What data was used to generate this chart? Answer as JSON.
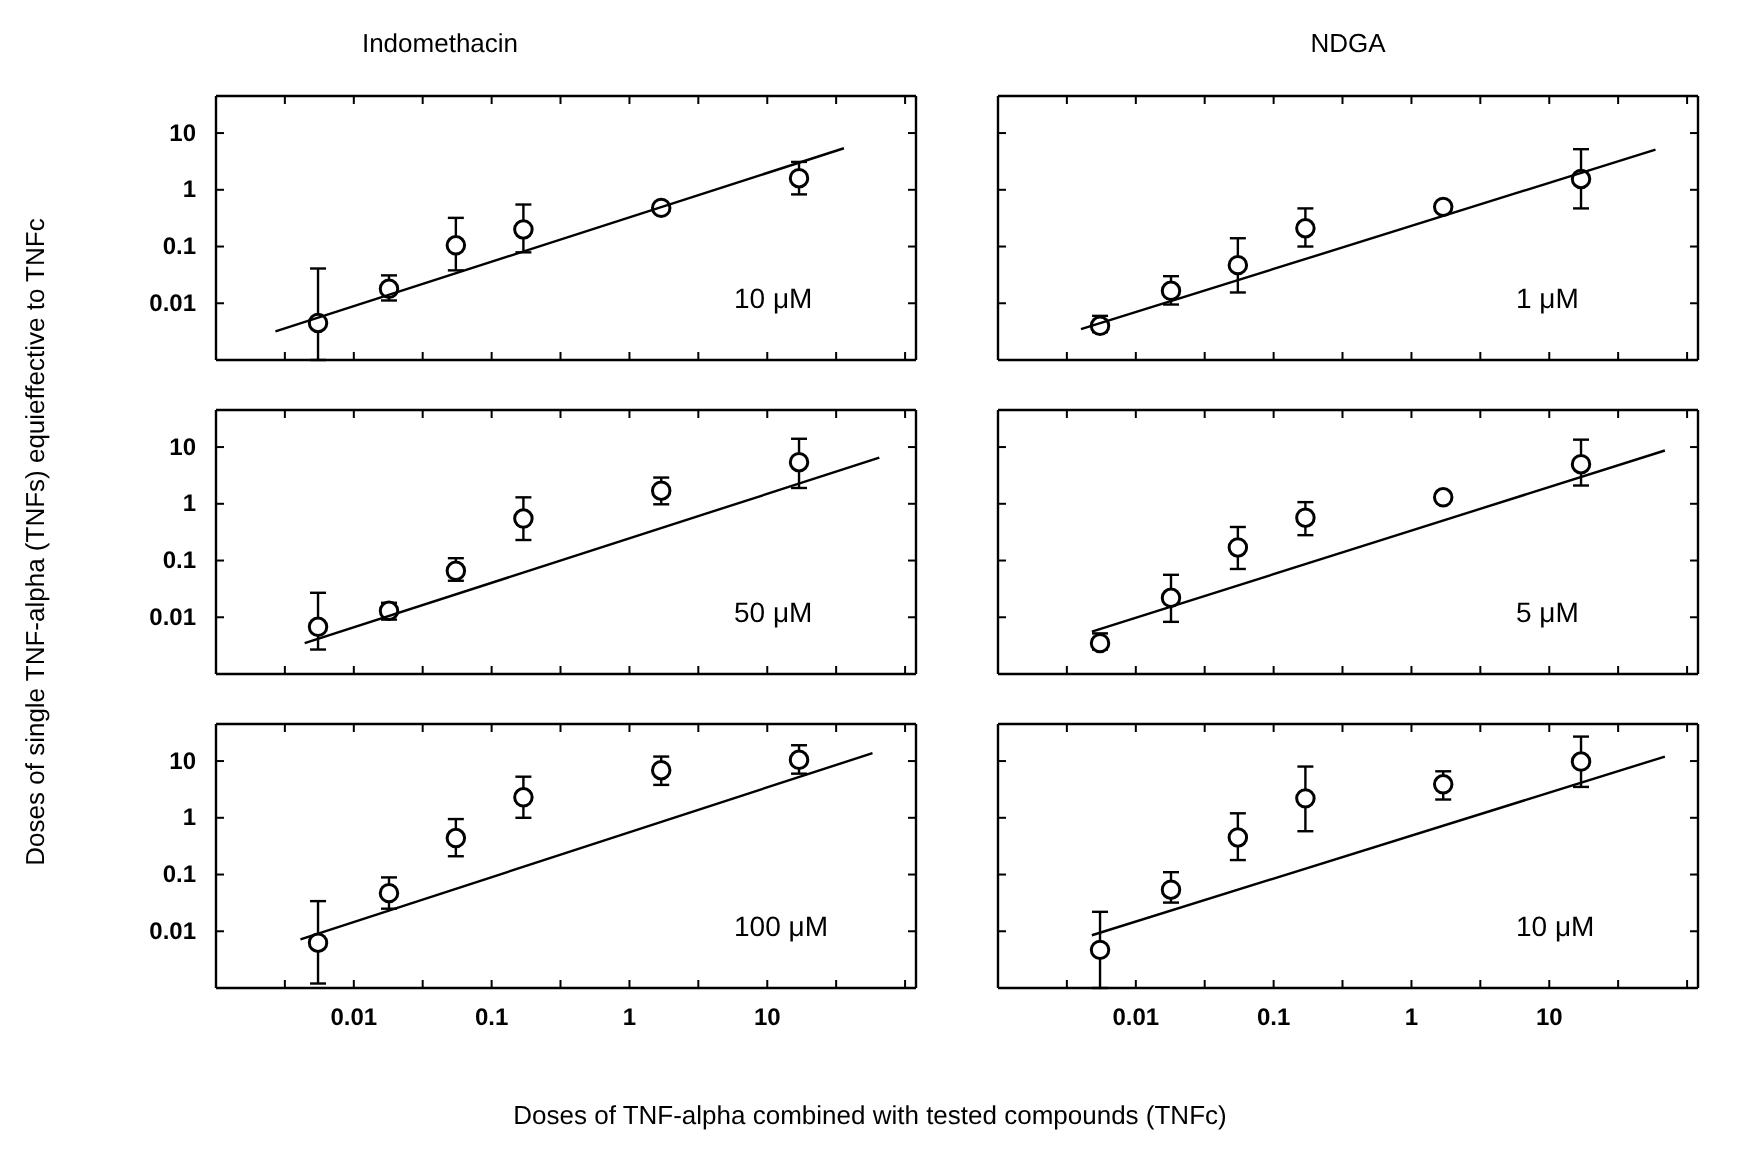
{
  "chart_data": [
    {
      "type": "scatter",
      "title": "Indomethacin",
      "log": "xy",
      "tick_labels": "y",
      "xlim": [
        0.001,
        120
      ],
      "ylim": [
        0.001,
        45
      ],
      "xticks": [
        {
          "value": 0.00316,
          "label": null
        },
        0.01,
        {
          "value": 0.0316,
          "label": null
        },
        0.1,
        {
          "value": 0.316,
          "label": null
        },
        1,
        {
          "value": 3.16,
          "label": null
        },
        10,
        {
          "value": 31.6,
          "label": null
        },
        {
          "value": 100,
          "label": null
        }
      ],
      "yticks": [
        0.01,
        0.1,
        1,
        10
      ],
      "annotations": [
        "10 μM"
      ],
      "series": [
        {
          "marker": "circle",
          "color": "#000000",
          "x": [
            0.0055,
            0.018,
            0.055,
            0.17,
            1.7,
            17
          ],
          "values": [
            0.0045,
            0.018,
            0.105,
            0.2,
            0.48,
            1.6
          ],
          "errors": [
            [
              0.001,
              0.041
            ],
            [
              0.0112,
              0.031
            ],
            [
              0.038,
              0.32
            ],
            [
              0.079,
              0.55
            ],
            [
              0.4,
              0.57
            ],
            [
              0.83,
              3.1
            ]
          ]
        },
        {
          "type": "line",
          "marker": "none",
          "color": "#000000",
          "x": [
            0.0027,
            36
          ],
          "values": [
            0.0032,
            5.4
          ]
        }
      ]
    },
    {
      "type": "scatter",
      "title": "NDGA",
      "log": "xy",
      "tick_labels": false,
      "xlim": [
        0.001,
        120
      ],
      "ylim": [
        0.001,
        45
      ],
      "xticks": [
        {
          "value": 0.00316,
          "label": null
        },
        0.01,
        {
          "value": 0.0316,
          "label": null
        },
        0.1,
        {
          "value": 0.316,
          "label": null
        },
        1,
        {
          "value": 3.16,
          "label": null
        },
        10,
        {
          "value": 31.6,
          "label": null
        },
        {
          "value": 100,
          "label": null
        }
      ],
      "yticks": [
        0.01,
        0.1,
        1,
        10
      ],
      "annotations": [
        "1 μM"
      ],
      "series": [
        {
          "marker": "circle",
          "color": "#000000",
          "x": [
            0.0055,
            0.018,
            0.055,
            0.17,
            1.7,
            17
          ],
          "values": [
            0.004,
            0.0166,
            0.047,
            0.21,
            0.5,
            1.55
          ],
          "errors": [
            [
              0.0031,
              0.006
            ],
            [
              0.0095,
              0.03
            ],
            [
              0.0155,
              0.14
            ],
            [
              0.1,
              0.47
            ],
            [
              0.42,
              0.6
            ],
            [
              0.47,
              5.2
            ]
          ]
        },
        {
          "type": "line",
          "marker": "none",
          "color": "#000000",
          "x": [
            0.004,
            59
          ],
          "values": [
            0.0035,
            5.1
          ]
        }
      ]
    },
    {
      "type": "scatter",
      "ylabel": "Doses of single TNF-alpha (TNFs) equieffective to TNFc",
      "log": "xy",
      "tick_labels": "y",
      "xlim": [
        0.001,
        120
      ],
      "ylim": [
        0.001,
        45
      ],
      "xticks": [
        {
          "value": 0.00316,
          "label": null
        },
        0.01,
        {
          "value": 0.0316,
          "label": null
        },
        0.1,
        {
          "value": 0.316,
          "label": null
        },
        1,
        {
          "value": 3.16,
          "label": null
        },
        10,
        {
          "value": 31.6,
          "label": null
        },
        {
          "value": 100,
          "label": null
        }
      ],
      "yticks": [
        0.01,
        0.1,
        1,
        10
      ],
      "annotations": [
        "50 μM"
      ],
      "series": [
        {
          "marker": "circle",
          "color": "#000000",
          "x": [
            0.0055,
            0.018,
            0.055,
            0.17,
            1.7,
            17
          ],
          "values": [
            0.0068,
            0.013,
            0.066,
            0.55,
            1.7,
            5.4
          ],
          "errors": [
            [
              0.0027,
              0.027
            ],
            [
              0.0091,
              0.018
            ],
            [
              0.044,
              0.11
            ],
            [
              0.23,
              1.3
            ],
            [
              0.98,
              2.9
            ],
            [
              1.9,
              14
            ]
          ]
        },
        {
          "type": "line",
          "marker": "none",
          "color": "#000000",
          "x": [
            0.0044,
            65
          ],
          "values": [
            0.0035,
            6.5
          ]
        }
      ]
    },
    {
      "type": "scatter",
      "log": "xy",
      "tick_labels": false,
      "xlim": [
        0.001,
        120
      ],
      "ylim": [
        0.001,
        45
      ],
      "xticks": [
        {
          "value": 0.00316,
          "label": null
        },
        0.01,
        {
          "value": 0.0316,
          "label": null
        },
        0.1,
        {
          "value": 0.316,
          "label": null
        },
        1,
        {
          "value": 3.16,
          "label": null
        },
        10,
        {
          "value": 31.6,
          "label": null
        },
        {
          "value": 100,
          "label": null
        }
      ],
      "yticks": [
        0.01,
        0.1,
        1,
        10
      ],
      "annotations": [
        "5 μM"
      ],
      "series": [
        {
          "marker": "circle",
          "color": "#000000",
          "x": [
            0.0055,
            0.018,
            0.055,
            0.17,
            1.7,
            17
          ],
          "values": [
            0.0035,
            0.022,
            0.17,
            0.57,
            1.3,
            5.0
          ],
          "errors": [
            [
              0.0027,
              0.0052
            ],
            [
              0.0083,
              0.056
            ],
            [
              0.071,
              0.39
            ],
            [
              0.28,
              1.07
            ],
            [
              1.1,
              1.6
            ],
            [
              2.1,
              13.5
            ]
          ]
        },
        {
          "type": "line",
          "marker": "none",
          "color": "#000000",
          "x": [
            0.0048,
            69
          ],
          "values": [
            0.0056,
            8.7
          ]
        }
      ]
    },
    {
      "type": "scatter",
      "xlabel": "Doses of TNF-alpha combined with tested compounds (TNFc)",
      "log": "xy",
      "xlim": [
        0.001,
        120
      ],
      "ylim": [
        0.001,
        45
      ],
      "xticks": [
        {
          "value": 0.00316,
          "label": null
        },
        0.01,
        {
          "value": 0.0316,
          "label": null
        },
        0.1,
        {
          "value": 0.316,
          "label": null
        },
        1,
        {
          "value": 3.16,
          "label": null
        },
        10,
        {
          "value": 31.6,
          "label": null
        },
        {
          "value": 100,
          "label": null
        }
      ],
      "yticks": [
        0.01,
        0.1,
        1,
        10
      ],
      "annotations": [
        "100 μM"
      ],
      "series": [
        {
          "marker": "circle",
          "color": "#000000",
          "x": [
            0.0055,
            0.018,
            0.055,
            0.17,
            1.7,
            17
          ],
          "values": [
            0.0063,
            0.047,
            0.44,
            2.3,
            6.9,
            10.5
          ],
          "errors": [
            [
              0.0012,
              0.034
            ],
            [
              0.025,
              0.089
            ],
            [
              0.21,
              0.95
            ],
            [
              1.0,
              5.3
            ],
            [
              3.8,
              12
            ],
            [
              6,
              19
            ]
          ]
        },
        {
          "type": "line",
          "marker": "none",
          "color": "#000000",
          "x": [
            0.0041,
            58
          ],
          "values": [
            0.0072,
            13.8
          ]
        }
      ]
    },
    {
      "type": "scatter",
      "log": "xy",
      "tick_labels": "x",
      "xlim": [
        0.001,
        120
      ],
      "ylim": [
        0.001,
        45
      ],
      "xticks": [
        {
          "value": 0.00316,
          "label": null
        },
        0.01,
        {
          "value": 0.0316,
          "label": null
        },
        0.1,
        {
          "value": 0.316,
          "label": null
        },
        1,
        {
          "value": 3.16,
          "label": null
        },
        10,
        {
          "value": 31.6,
          "label": null
        },
        {
          "value": 100,
          "label": null
        }
      ],
      "yticks": [
        0.01,
        0.1,
        1,
        10
      ],
      "annotations": [
        "10 μM"
      ],
      "series": [
        {
          "marker": "circle",
          "color": "#000000",
          "x": [
            0.0055,
            0.018,
            0.055,
            0.17,
            1.7,
            17
          ],
          "values": [
            0.0047,
            0.054,
            0.45,
            2.2,
            3.9,
            9.8
          ],
          "errors": [
            [
              0.001,
              0.022
            ],
            [
              0.032,
              0.11
            ],
            [
              0.18,
              1.2
            ],
            [
              0.58,
              8
            ],
            [
              2.1,
              6.6
            ],
            [
              3.5,
              27
            ]
          ]
        },
        {
          "type": "line",
          "marker": "none",
          "color": "#000000",
          "x": [
            0.0048,
            69
          ],
          "values": [
            0.0085,
            12
          ]
        }
      ]
    }
  ]
}
